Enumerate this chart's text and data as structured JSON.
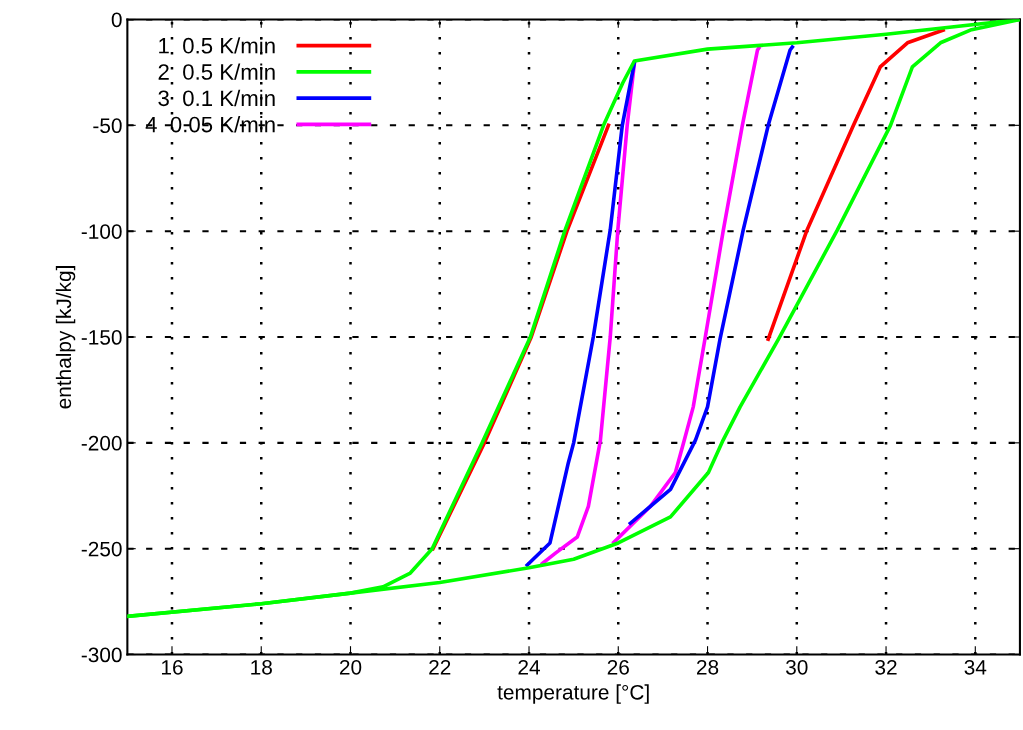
{
  "chart_data": {
    "type": "line",
    "xlabel": "temperature [°C]",
    "ylabel": "enthalpy [kJ/kg]",
    "xlim": [
      15,
      35
    ],
    "xticks": [
      16,
      18,
      20,
      22,
      24,
      26,
      28,
      30,
      32,
      34
    ],
    "ylim": [
      -300,
      0
    ],
    "yticks": [
      -300,
      -250,
      -200,
      -150,
      -100,
      -50,
      0
    ],
    "grid": true,
    "legend": "top left",
    "line_style": "solid",
    "marker": "none",
    "series": [
      {
        "name": "1  0.5 K/min",
        "color": "#ff0000",
        "x": [
          21.85,
          23.0,
          24.05,
          24.85,
          25.78
        ],
        "values": [
          -250,
          -200,
          -150,
          -100,
          -50
        ]
      },
      {
        "color": "#ff0000",
        "x": [
          29.36,
          30.23,
          31.27,
          31.87,
          32.48,
          33.28
        ],
        "values": [
          -151,
          -99.4,
          -50,
          -22.4,
          -11,
          -5
        ]
      },
      {
        "name": "2  0.5 K/min",
        "color": "#00ff00",
        "x": [
          15,
          18,
          20,
          20.73,
          21.34,
          21.83,
          22.95,
          24.03,
          24.8,
          25.67,
          26.1,
          26.36,
          28,
          30,
          32,
          35
        ],
        "values": [
          -282,
          -276,
          -271,
          -268,
          -261.5,
          -250,
          -200,
          -150,
          -100,
          -50,
          -30,
          -19.6,
          -14,
          -11,
          -7,
          0
        ]
      },
      {
        "color": "#00ff00",
        "x": [
          15,
          18,
          20,
          22,
          24,
          25,
          26,
          27.17,
          28.02,
          28.35,
          28.73,
          29.59,
          30.91,
          32.1,
          32.59,
          33.22,
          33.89,
          35
        ],
        "values": [
          -282,
          -276,
          -271,
          -266,
          -259,
          -255,
          -247.3,
          -235,
          -214,
          -198.7,
          -183,
          -151,
          -99.4,
          -50,
          -22.4,
          -11,
          -5,
          0
        ]
      },
      {
        "name": "3  0.1 K/min",
        "color": "#0000ff",
        "x": [
          23.96,
          24.47,
          24.88,
          25.0,
          25.44,
          25.82,
          26.09,
          26.36
        ],
        "values": [
          -257.7,
          -247.3,
          -209.5,
          -200,
          -150,
          -99.4,
          -50,
          -20.5
        ]
      },
      {
        "color": "#0000ff",
        "x": [
          26.27,
          27.17,
          27.73,
          28.0,
          28.28,
          28.8,
          29.36,
          29.85,
          29.9
        ],
        "values": [
          -238,
          -222,
          -198.7,
          -183,
          -151,
          -99.4,
          -50,
          -14.4,
          -13
        ]
      },
      {
        "name": "4  0.05 K/min",
        "color": "#ff00ff",
        "x": [
          24.3,
          24.6,
          25.08,
          25.33,
          25.6,
          25.82,
          25.99,
          26.2,
          26.36
        ],
        "values": [
          -257,
          -252,
          -244.5,
          -230,
          -198.7,
          -150,
          -99.4,
          -50,
          -21
        ]
      },
      {
        "color": "#ff00ff",
        "x": [
          25.9,
          26.72,
          27.28,
          27.48,
          27.68,
          27.95,
          28.35,
          28.78,
          29.12,
          29.15
        ],
        "values": [
          -247,
          -230,
          -214,
          -198.7,
          -183,
          -150,
          -100,
          -50,
          -14.4,
          -13.5
        ]
      }
    ]
  }
}
